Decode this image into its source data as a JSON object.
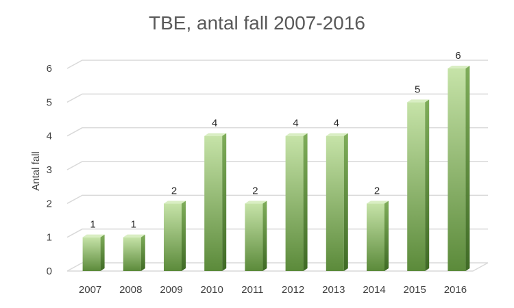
{
  "chart_data": {
    "type": "bar",
    "title": "TBE, antal fall 2007-2016",
    "xlabel": "",
    "ylabel": "Antal fall",
    "categories": [
      "2007",
      "2008",
      "2009",
      "2010",
      "2011",
      "2012",
      "2013",
      "2014",
      "2015",
      "2016"
    ],
    "values": [
      1,
      1,
      2,
      4,
      2,
      4,
      4,
      2,
      5,
      6
    ],
    "ylim": [
      0,
      6
    ],
    "yticks": [
      0,
      1,
      2,
      3,
      4,
      5,
      6
    ],
    "grid": true,
    "legend": "none",
    "style": "3d-column",
    "colors": {
      "bar_light": "#c6e3a8",
      "bar_dark": "#5b8a3a",
      "bar_side": "#4e7a30",
      "bar_top": "#d9eec3",
      "gridline": "#d9d9d9",
      "text": "#404040",
      "title": "#595959"
    }
  }
}
